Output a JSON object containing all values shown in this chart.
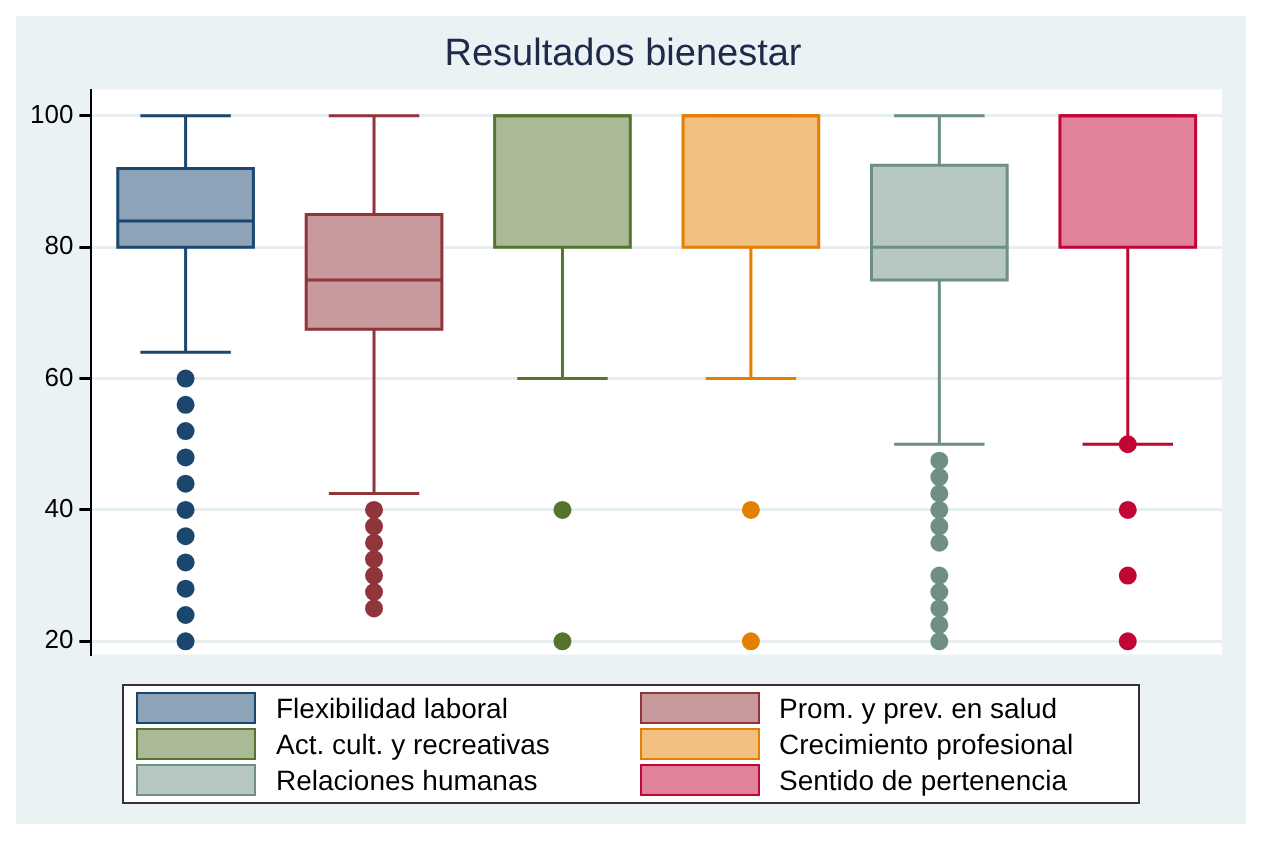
{
  "chart_data": {
    "type": "box",
    "title": "Resultados bienestar",
    "categories": [
      null
    ],
    "ylim": [
      18,
      104
    ],
    "yticks": [
      20,
      40,
      60,
      80,
      100
    ],
    "grid": "y",
    "legend": "bottom",
    "marker": "circle",
    "series": [
      {
        "name": "Flexibilidad laboral",
        "color": "#8da3b7",
        "boxes": [
          {
            "low": 64,
            "q1": 80,
            "median": 84,
            "q3": 92,
            "high": 100,
            "outliers": [
              60,
              56,
              52,
              48,
              44,
              40,
              36,
              32,
              28,
              24,
              20
            ]
          }
        ]
      },
      {
        "name": "Prom. y prev. en salud",
        "color": "#c89a9d",
        "boxes": [
          {
            "low": 42.5,
            "q1": 67.5,
            "median": 75,
            "q3": 85,
            "high": 100,
            "outliers": [
              40,
              37.5,
              35,
              32.5,
              30,
              27.5,
              25
            ]
          }
        ]
      },
      {
        "name": "Act. cult. y recreativas",
        "color": "#aaba97",
        "boxes": [
          {
            "low": 60,
            "q1": 80,
            "median": 100,
            "q3": 100,
            "high": 100,
            "outliers": [
              40,
              20
            ]
          }
        ]
      },
      {
        "name": "Crecimiento profesional",
        "color": "#f1bf80",
        "boxes": [
          {
            "low": 60,
            "q1": 80,
            "median": 100,
            "q3": 100,
            "high": 100,
            "outliers": [
              40,
              20
            ]
          }
        ]
      },
      {
        "name": "Relaciones humanas",
        "color": "#b7c7c2",
        "boxes": [
          {
            "low": 50,
            "q1": 75,
            "median": 80,
            "q3": 92.5,
            "high": 100,
            "outliers": [
              47.5,
              45,
              42.5,
              40,
              37.5,
              35,
              30,
              27.5,
              25,
              22.5,
              20
            ]
          }
        ]
      },
      {
        "name": "Sentido de pertenencia",
        "color": "#e0829a",
        "boxes": [
          {
            "low": 50,
            "q1": 80,
            "median": 100,
            "q3": 100,
            "high": 100,
            "outliers": [
              50,
              40,
              30,
              20
            ]
          }
        ]
      }
    ]
  }
}
